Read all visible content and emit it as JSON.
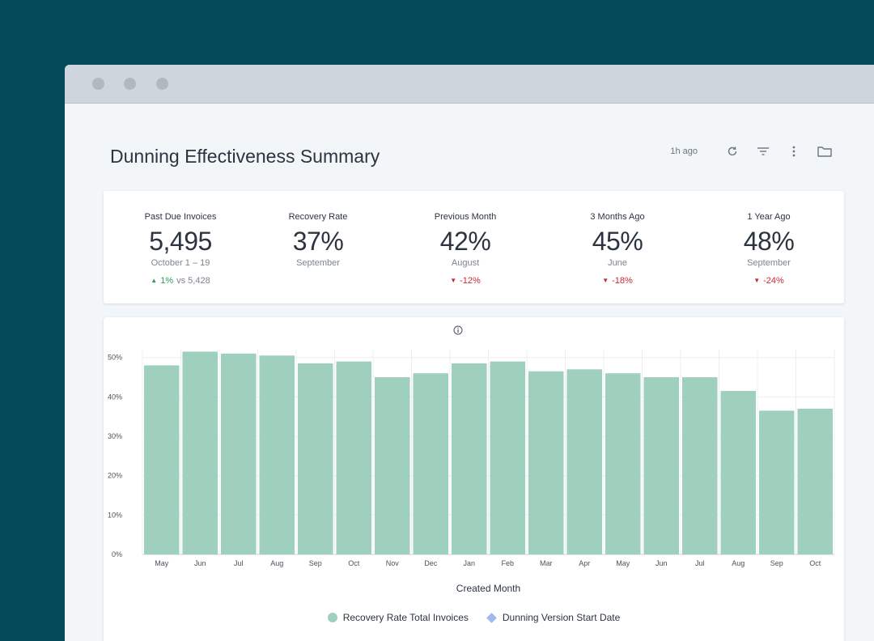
{
  "page": {
    "title": "Dunning Effectiveness Summary",
    "last_updated": "1h ago"
  },
  "toolbar": {
    "icons": [
      "refresh-icon",
      "filter-icon",
      "more-vertical-icon",
      "folder-icon"
    ]
  },
  "kpis": [
    {
      "label": "Past Due Invoices",
      "value": "5,495",
      "period": "October 1 – 19",
      "change_direction": "up",
      "change": "1%",
      "compare": "vs 5,428"
    },
    {
      "label": "Recovery Rate",
      "value": "37%",
      "period": "September"
    },
    {
      "label": "Previous Month",
      "value": "42%",
      "period": "August",
      "change_direction": "down",
      "change": "-12%"
    },
    {
      "label": "3 Months Ago",
      "value": "45%",
      "period": "June",
      "change_direction": "down",
      "change": "-18%"
    },
    {
      "label": "1 Year Ago",
      "value": "48%",
      "period": "September",
      "change_direction": "down",
      "change": "-24%"
    }
  ],
  "colors": {
    "bar": "#9fcfbd",
    "up": "#2e9e55",
    "down": "#c62834",
    "diamond": "#9eb9f0"
  },
  "chart_data": {
    "type": "bar",
    "categories": [
      "May",
      "Jun",
      "Jul",
      "Aug",
      "Sep",
      "Oct",
      "Nov",
      "Dec",
      "Jan",
      "Feb",
      "Mar",
      "Apr",
      "May",
      "Jun",
      "Jul",
      "Aug",
      "Sep",
      "Oct"
    ],
    "series": [
      {
        "name": "Recovery Rate Total Invoices",
        "values": [
          48,
          51.5,
          51,
          50.5,
          48.5,
          49,
          45,
          46,
          48.5,
          49,
          46.5,
          47,
          46,
          45,
          45,
          41.5,
          36.5,
          37
        ]
      }
    ],
    "xlabel": "Created Month",
    "ylabel": "",
    "yticks": [
      "0%",
      "10%",
      "20%",
      "30%",
      "40%",
      "50%"
    ],
    "ylim": [
      0,
      52
    ],
    "grid": true,
    "legend": {
      "placement": "bottom",
      "entries": [
        "Recovery Rate Total Invoices",
        "Dunning Version Start Date"
      ]
    }
  }
}
